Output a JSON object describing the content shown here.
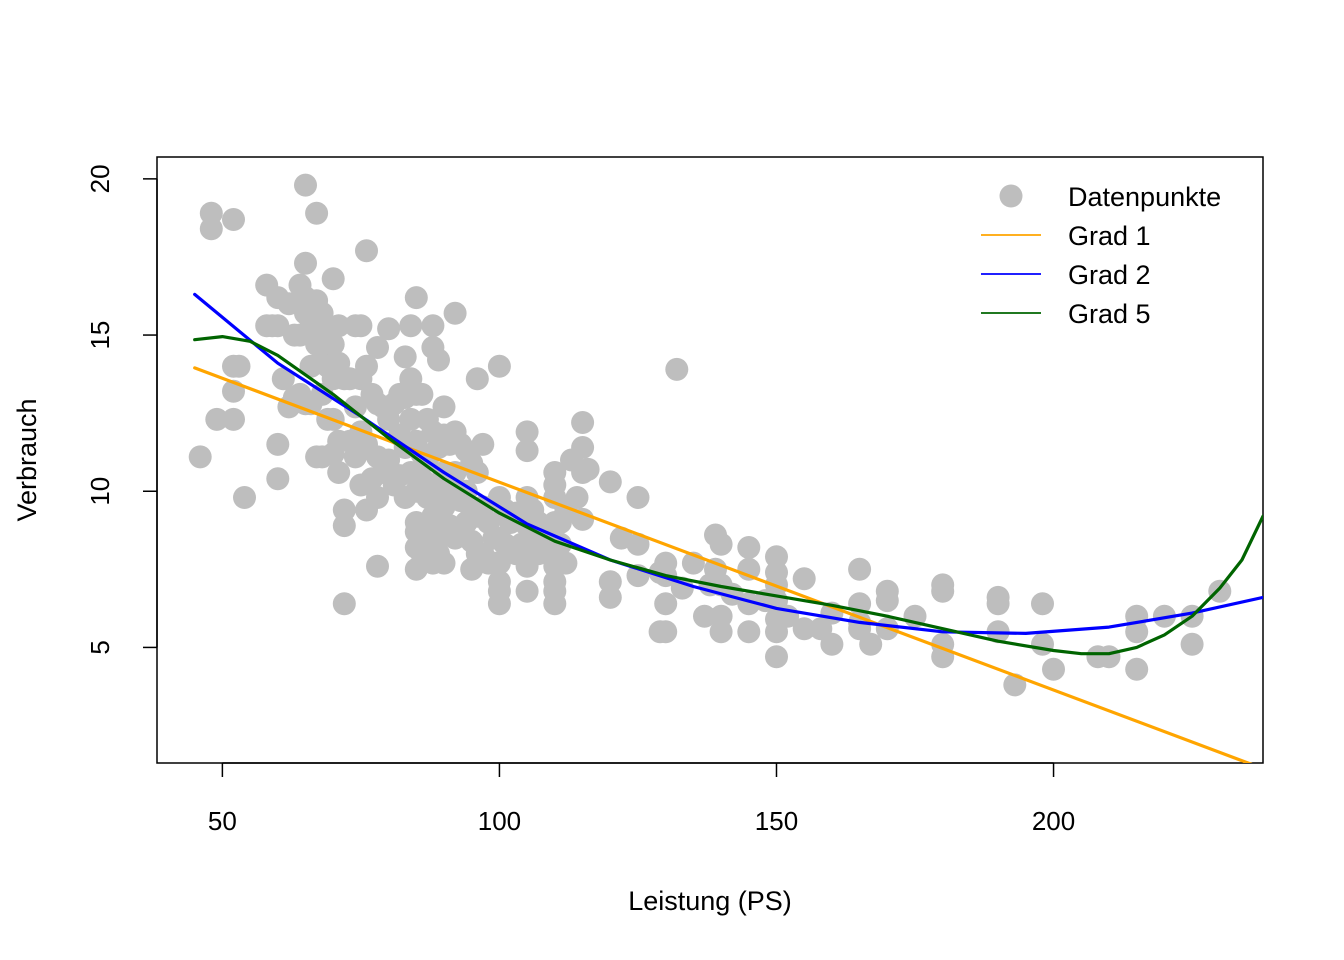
{
  "chart_data": {
    "type": "scatter",
    "title": "",
    "xlabel": "Leistung (PS)",
    "ylabel": "Verbrauch",
    "xlim": [
      38.2,
      237.8
    ],
    "ylim": [
      1.3,
      20.7
    ],
    "xticks": [
      50,
      100,
      150,
      200
    ],
    "yticks": [
      5,
      10,
      15,
      20
    ],
    "grid": false,
    "legend": {
      "position": "top-right",
      "entries": [
        {
          "label": "Datenpunkte",
          "kind": "point",
          "color": "#BEBEBE"
        },
        {
          "label": "Grad 1",
          "kind": "line",
          "color": "#FFA500"
        },
        {
          "label": "Grad 2",
          "kind": "line",
          "color": "#0000FF"
        },
        {
          "label": "Grad 5",
          "kind": "line",
          "color": "#006400"
        }
      ]
    },
    "points": [
      [
        46,
        11.1
      ],
      [
        48,
        18.9
      ],
      [
        48,
        18.4
      ],
      [
        49,
        12.3
      ],
      [
        52,
        18.7
      ],
      [
        52,
        14.0
      ],
      [
        52,
        13.2
      ],
      [
        52,
        12.3
      ],
      [
        53,
        14.0
      ],
      [
        54,
        9.8
      ],
      [
        58,
        16.6
      ],
      [
        58,
        15.3
      ],
      [
        59,
        15.3
      ],
      [
        60,
        16.2
      ],
      [
        60,
        15.3
      ],
      [
        60,
        11.5
      ],
      [
        60,
        10.4
      ],
      [
        61,
        13.6
      ],
      [
        62,
        16.0
      ],
      [
        62,
        12.7
      ],
      [
        63,
        15.0
      ],
      [
        63,
        13.0
      ],
      [
        64,
        16.6
      ],
      [
        64,
        15.0
      ],
      [
        64,
        13.1
      ],
      [
        65,
        19.8
      ],
      [
        65,
        17.3
      ],
      [
        65,
        16.2
      ],
      [
        65,
        15.7
      ],
      [
        65,
        12.8
      ],
      [
        66,
        15.3
      ],
      [
        66,
        14.0
      ],
      [
        66,
        12.8
      ],
      [
        67,
        18.9
      ],
      [
        67,
        16.1
      ],
      [
        67,
        14.7
      ],
      [
        67,
        11.1
      ],
      [
        68,
        15.7
      ],
      [
        68,
        14.6
      ],
      [
        68,
        13.1
      ],
      [
        68,
        11.1
      ],
      [
        69,
        15.3
      ],
      [
        69,
        14.0
      ],
      [
        69,
        12.3
      ],
      [
        70,
        16.8
      ],
      [
        70,
        14.7
      ],
      [
        70,
        13.6
      ],
      [
        70,
        12.3
      ],
      [
        70,
        11.2
      ],
      [
        71,
        15.3
      ],
      [
        71,
        14.1
      ],
      [
        71,
        11.6
      ],
      [
        71,
        10.6
      ],
      [
        72,
        13.6
      ],
      [
        72,
        9.4
      ],
      [
        72,
        8.9
      ],
      [
        72,
        6.4
      ],
      [
        73,
        13.6
      ],
      [
        73,
        11.6
      ],
      [
        74,
        15.3
      ],
      [
        74,
        12.7
      ],
      [
        74,
        11.1
      ],
      [
        75,
        15.3
      ],
      [
        75,
        13.6
      ],
      [
        75,
        11.9
      ],
      [
        75,
        10.2
      ],
      [
        76,
        17.7
      ],
      [
        76,
        14.0
      ],
      [
        76,
        11.5
      ],
      [
        76,
        9.4
      ],
      [
        77,
        13.1
      ],
      [
        77,
        10.4
      ],
      [
        78,
        14.6
      ],
      [
        78,
        12.8
      ],
      [
        78,
        11.1
      ],
      [
        78,
        9.8
      ],
      [
        78,
        7.6
      ],
      [
        79,
        12.7
      ],
      [
        79,
        10.6
      ],
      [
        80,
        15.2
      ],
      [
        80,
        12.3
      ],
      [
        80,
        11.0
      ],
      [
        81,
        12.8
      ],
      [
        81,
        10.2
      ],
      [
        82,
        13.1
      ],
      [
        82,
        11.8
      ],
      [
        82,
        10.5
      ],
      [
        83,
        14.3
      ],
      [
        83,
        13.0
      ],
      [
        83,
        11.4
      ],
      [
        83,
        9.8
      ],
      [
        84,
        15.3
      ],
      [
        84,
        13.6
      ],
      [
        84,
        12.3
      ],
      [
        84,
        10.6
      ],
      [
        85,
        16.2
      ],
      [
        85,
        13.1
      ],
      [
        85,
        11.6
      ],
      [
        85,
        10.0
      ],
      [
        85,
        9.0
      ],
      [
        85,
        8.7
      ],
      [
        85,
        8.2
      ],
      [
        85,
        7.5
      ],
      [
        86,
        13.1
      ],
      [
        86,
        11.2
      ],
      [
        86,
        10.4
      ],
      [
        86,
        8.9
      ],
      [
        86,
        8.0
      ],
      [
        87,
        12.3
      ],
      [
        87,
        11.0
      ],
      [
        87,
        9.8
      ],
      [
        87,
        8.5
      ],
      [
        87,
        7.8
      ],
      [
        88,
        15.3
      ],
      [
        88,
        14.6
      ],
      [
        88,
        11.9
      ],
      [
        88,
        10.2
      ],
      [
        88,
        9.2
      ],
      [
        88,
        8.4
      ],
      [
        88,
        7.7
      ],
      [
        89,
        14.2
      ],
      [
        89,
        11.4
      ],
      [
        89,
        10.0
      ],
      [
        89,
        9.0
      ],
      [
        89,
        8.0
      ],
      [
        90,
        12.7
      ],
      [
        90,
        11.8
      ],
      [
        90,
        10.6
      ],
      [
        90,
        9.5
      ],
      [
        90,
        8.6
      ],
      [
        90,
        7.7
      ],
      [
        91,
        11.5
      ],
      [
        91,
        10.2
      ],
      [
        91,
        8.9
      ],
      [
        92,
        15.7
      ],
      [
        92,
        11.9
      ],
      [
        92,
        10.6
      ],
      [
        92,
        9.8
      ],
      [
        92,
        8.5
      ],
      [
        93,
        11.5
      ],
      [
        93,
        9.7
      ],
      [
        93,
        8.7
      ],
      [
        94,
        11.3
      ],
      [
        94,
        10.0
      ],
      [
        94,
        9.0
      ],
      [
        95,
        10.9
      ],
      [
        95,
        9.4
      ],
      [
        95,
        8.4
      ],
      [
        95,
        7.5
      ],
      [
        96,
        13.6
      ],
      [
        96,
        10.6
      ],
      [
        96,
        9.2
      ],
      [
        96,
        8.0
      ],
      [
        97,
        11.5
      ],
      [
        97,
        9.5
      ],
      [
        97,
        8.0
      ],
      [
        98,
        9.0
      ],
      [
        98,
        7.7
      ],
      [
        99,
        8.5
      ],
      [
        99,
        7.7
      ],
      [
        100,
        14.0
      ],
      [
        100,
        9.8
      ],
      [
        100,
        8.5
      ],
      [
        100,
        7.7
      ],
      [
        100,
        7.1
      ],
      [
        100,
        6.8
      ],
      [
        100,
        6.4
      ],
      [
        101,
        9.4
      ],
      [
        101,
        8.3
      ],
      [
        102,
        9.0
      ],
      [
        102,
        8.1
      ],
      [
        103,
        9.3
      ],
      [
        103,
        8.0
      ],
      [
        104,
        8.3
      ],
      [
        105,
        11.9
      ],
      [
        105,
        11.3
      ],
      [
        105,
        9.8
      ],
      [
        105,
        8.9
      ],
      [
        105,
        8.1
      ],
      [
        105,
        7.6
      ],
      [
        105,
        6.8
      ],
      [
        106,
        9.4
      ],
      [
        106,
        8.6
      ],
      [
        107,
        9.0
      ],
      [
        107,
        8.0
      ],
      [
        108,
        8.3
      ],
      [
        109,
        8.0
      ],
      [
        110,
        10.6
      ],
      [
        110,
        10.2
      ],
      [
        110,
        9.8
      ],
      [
        110,
        9.0
      ],
      [
        110,
        8.3
      ],
      [
        110,
        7.6
      ],
      [
        110,
        7.1
      ],
      [
        110,
        6.8
      ],
      [
        110,
        6.4
      ],
      [
        111,
        9.0
      ],
      [
        111,
        8.3
      ],
      [
        112,
        9.4
      ],
      [
        112,
        7.7
      ],
      [
        113,
        11.0
      ],
      [
        114,
        9.8
      ],
      [
        115,
        12.2
      ],
      [
        115,
        11.4
      ],
      [
        115,
        10.6
      ],
      [
        115,
        9.1
      ],
      [
        116,
        10.7
      ],
      [
        120,
        10.3
      ],
      [
        120,
        7.1
      ],
      [
        120,
        6.6
      ],
      [
        122,
        8.5
      ],
      [
        125,
        9.8
      ],
      [
        125,
        8.3
      ],
      [
        125,
        7.3
      ],
      [
        129,
        7.4
      ],
      [
        129,
        5.5
      ],
      [
        130,
        7.7
      ],
      [
        130,
        7.3
      ],
      [
        130,
        6.4
      ],
      [
        130,
        5.5
      ],
      [
        132,
        13.9
      ],
      [
        133,
        6.9
      ],
      [
        135,
        7.7
      ],
      [
        137,
        6.0
      ],
      [
        138,
        7.0
      ],
      [
        139,
        8.6
      ],
      [
        139,
        7.5
      ],
      [
        140,
        8.3
      ],
      [
        140,
        7.0
      ],
      [
        140,
        6.0
      ],
      [
        140,
        5.5
      ],
      [
        142,
        6.7
      ],
      [
        145,
        8.2
      ],
      [
        145,
        7.5
      ],
      [
        145,
        6.4
      ],
      [
        145,
        5.5
      ],
      [
        148,
        6.5
      ],
      [
        150,
        7.9
      ],
      [
        150,
        7.4
      ],
      [
        150,
        7.0
      ],
      [
        150,
        6.5
      ],
      [
        150,
        5.9
      ],
      [
        150,
        5.5
      ],
      [
        150,
        4.7
      ],
      [
        152,
        6.0
      ],
      [
        155,
        7.2
      ],
      [
        155,
        5.6
      ],
      [
        158,
        5.6
      ],
      [
        160,
        6.1
      ],
      [
        160,
        5.1
      ],
      [
        165,
        7.5
      ],
      [
        165,
        6.4
      ],
      [
        165,
        5.8
      ],
      [
        165,
        5.6
      ],
      [
        167,
        5.1
      ],
      [
        170,
        6.8
      ],
      [
        170,
        6.5
      ],
      [
        170,
        5.6
      ],
      [
        175,
        6.0
      ],
      [
        180,
        7.0
      ],
      [
        180,
        6.8
      ],
      [
        180,
        5.1
      ],
      [
        180,
        4.7
      ],
      [
        190,
        6.6
      ],
      [
        190,
        6.4
      ],
      [
        190,
        5.5
      ],
      [
        193,
        3.8
      ],
      [
        198,
        6.4
      ],
      [
        198,
        5.1
      ],
      [
        200,
        4.3
      ],
      [
        208,
        4.7
      ],
      [
        210,
        4.7
      ],
      [
        215,
        6.0
      ],
      [
        215,
        5.5
      ],
      [
        215,
        4.3
      ],
      [
        220,
        6.0
      ],
      [
        225,
        6.0
      ],
      [
        225,
        5.1
      ],
      [
        230,
        6.8
      ]
    ],
    "series": [
      {
        "name": "Grad 1",
        "color": "#FFA500",
        "x": [
          45,
          237.8
        ],
        "y": [
          13.95,
          1.12
        ]
      },
      {
        "name": "Grad 2",
        "color": "#0000FF",
        "x": [
          45,
          60,
          75,
          90,
          105,
          120,
          135,
          150,
          165,
          180,
          195,
          210,
          225,
          237.8
        ],
        "y": [
          16.3,
          14.1,
          12.4,
          10.6,
          8.95,
          7.8,
          6.95,
          6.25,
          5.8,
          5.5,
          5.45,
          5.65,
          6.1,
          6.6
        ]
      },
      {
        "name": "Grad 5",
        "color": "#006400",
        "x": [
          45,
          50,
          55,
          60,
          70,
          80,
          90,
          100,
          110,
          120,
          130,
          140,
          150,
          160,
          170,
          180,
          190,
          200,
          205,
          210,
          215,
          220,
          225,
          230,
          234,
          237.8
        ],
        "y": [
          14.85,
          14.95,
          14.8,
          14.35,
          13.1,
          11.7,
          10.4,
          9.3,
          8.4,
          7.8,
          7.3,
          6.95,
          6.65,
          6.35,
          6.0,
          5.6,
          5.2,
          4.9,
          4.8,
          4.8,
          5.0,
          5.4,
          6.0,
          6.9,
          7.8,
          9.2
        ]
      }
    ]
  }
}
